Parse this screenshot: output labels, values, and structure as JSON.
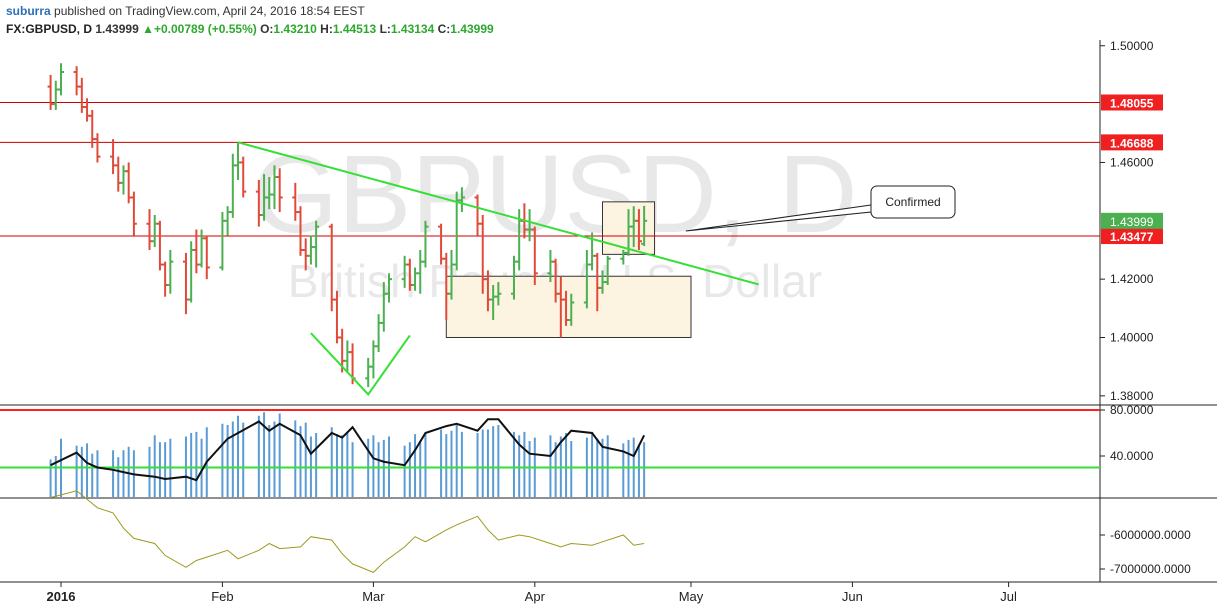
{
  "header": {
    "user": "suburra",
    "published_text": "published on TradingView.com, April 24, 2016 18:54 EEST",
    "symbol": "FX:GBPUSD, D",
    "last": "1.43999",
    "change_arrow": "▲",
    "change": "+0.00789 (+0.55%)",
    "o_label": "O:",
    "o_value": "1.43210",
    "h_label": "H:",
    "h_value": "1.44513",
    "l_label": "L:",
    "l_value": "1.43134",
    "c_label": "C:",
    "c_value": "1.43999"
  },
  "colors": {
    "up": "#4caf50",
    "down": "#e04a3a",
    "trendline": "#33e033",
    "resistance": "#cc0000",
    "price_tag": "#f02020",
    "last_tag": "#4caf50",
    "box_fill": "#fdf3e1",
    "osc_line": "#111111",
    "histogram": "#5b9bd5",
    "rsi_upper": "#ff2020",
    "rsi_lower": "#33e033",
    "volume_line": "#9e9a1e"
  },
  "chart_data": [
    {
      "type": "ohlc",
      "watermark_symbol": "GBPUSD, D",
      "watermark_name": "British Pound / U.S. Dollar",
      "y_ticks": [
        "1.50000",
        "1.46000",
        "1.42000",
        "1.40000",
        "1.38000"
      ],
      "y_tick_values": [
        1.5,
        1.46,
        1.42,
        1.4,
        1.38
      ],
      "x_ticks": [
        "2016",
        "Feb",
        "Mar",
        "Apr",
        "May",
        "Jun",
        "Jul"
      ],
      "x_tick_dates": [
        "2016-01-01",
        "2016-02-01",
        "2016-03-01",
        "2016-04-01",
        "2016-05-01",
        "2016-06-01",
        "2016-07-01"
      ],
      "price_levels": [
        {
          "label": "1.48055",
          "value": 1.48055,
          "kind": "resistance"
        },
        {
          "label": "1.46688",
          "value": 1.46688,
          "kind": "resistance"
        },
        {
          "label": "1.43477",
          "value": 1.43477,
          "kind": "resistance"
        }
      ],
      "last_price": {
        "label": "1.43999",
        "value": 1.43999
      },
      "trendline": [
        [
          "2016-02-04",
          1.4669
        ],
        [
          "2016-05-14",
          1.4182
        ]
      ],
      "v_pattern": [
        [
          "2016-02-18",
          1.4015
        ],
        [
          "2016-02-29",
          1.3805
        ],
        [
          "2016-03-08",
          1.4007
        ]
      ],
      "boxes": [
        {
          "from": "2016-03-15",
          "to": "2016-05-01",
          "top": 1.421,
          "bottom": 1.4
        },
        {
          "from": "2016-04-14",
          "to": "2016-04-24",
          "top": 1.4465,
          "bottom": 1.4285
        }
      ],
      "callout": {
        "text": "Confirmed",
        "points_to": [
          "2016-04-30",
          1.4365
        ]
      },
      "bars": [
        {
          "d": "2015-12-30",
          "o": 1.486,
          "h": 1.49,
          "l": 1.478,
          "c": 1.48
        },
        {
          "d": "2015-12-31",
          "o": 1.48,
          "h": 1.488,
          "l": 1.478,
          "c": 1.485
        },
        {
          "d": "2016-01-01",
          "o": 1.485,
          "h": 1.494,
          "l": 1.483,
          "c": 1.491
        },
        {
          "d": "2016-01-04",
          "o": 1.491,
          "h": 1.493,
          "l": 1.483,
          "c": 1.486
        },
        {
          "d": "2016-01-05",
          "o": 1.486,
          "h": 1.489,
          "l": 1.477,
          "c": 1.479
        },
        {
          "d": "2016-01-06",
          "o": 1.479,
          "h": 1.482,
          "l": 1.474,
          "c": 1.476
        },
        {
          "d": "2016-01-07",
          "o": 1.476,
          "h": 1.478,
          "l": 1.465,
          "c": 1.468
        },
        {
          "d": "2016-01-08",
          "o": 1.468,
          "h": 1.47,
          "l": 1.46,
          "c": 1.462
        },
        {
          "d": "2016-01-11",
          "o": 1.462,
          "h": 1.468,
          "l": 1.456,
          "c": 1.459
        },
        {
          "d": "2016-01-12",
          "o": 1.459,
          "h": 1.462,
          "l": 1.45,
          "c": 1.453
        },
        {
          "d": "2016-01-13",
          "o": 1.453,
          "h": 1.459,
          "l": 1.449,
          "c": 1.457
        },
        {
          "d": "2016-01-14",
          "o": 1.457,
          "h": 1.46,
          "l": 1.446,
          "c": 1.448
        },
        {
          "d": "2016-01-15",
          "o": 1.448,
          "h": 1.45,
          "l": 1.435,
          "c": 1.439
        },
        {
          "d": "2016-01-18",
          "o": 1.439,
          "h": 1.444,
          "l": 1.43,
          "c": 1.433
        },
        {
          "d": "2016-01-19",
          "o": 1.433,
          "h": 1.442,
          "l": 1.431,
          "c": 1.439
        },
        {
          "d": "2016-01-20",
          "o": 1.439,
          "h": 1.44,
          "l": 1.423,
          "c": 1.425
        },
        {
          "d": "2016-01-21",
          "o": 1.425,
          "h": 1.426,
          "l": 1.414,
          "c": 1.418
        },
        {
          "d": "2016-01-22",
          "o": 1.418,
          "h": 1.43,
          "l": 1.415,
          "c": 1.426
        },
        {
          "d": "2016-01-25",
          "o": 1.426,
          "h": 1.429,
          "l": 1.408,
          "c": 1.413
        },
        {
          "d": "2016-01-26",
          "o": 1.413,
          "h": 1.433,
          "l": 1.412,
          "c": 1.43
        },
        {
          "d": "2016-01-27",
          "o": 1.43,
          "h": 1.437,
          "l": 1.422,
          "c": 1.425
        },
        {
          "d": "2016-01-28",
          "o": 1.425,
          "h": 1.437,
          "l": 1.424,
          "c": 1.434
        },
        {
          "d": "2016-01-29",
          "o": 1.434,
          "h": 1.435,
          "l": 1.42,
          "c": 1.424
        },
        {
          "d": "2016-02-01",
          "o": 1.424,
          "h": 1.443,
          "l": 1.423,
          "c": 1.44
        },
        {
          "d": "2016-02-02",
          "o": 1.44,
          "h": 1.445,
          "l": 1.435,
          "c": 1.443
        },
        {
          "d": "2016-02-03",
          "o": 1.443,
          "h": 1.463,
          "l": 1.441,
          "c": 1.459
        },
        {
          "d": "2016-02-04",
          "o": 1.459,
          "h": 1.4669,
          "l": 1.454,
          "c": 1.46
        },
        {
          "d": "2016-02-05",
          "o": 1.46,
          "h": 1.462,
          "l": 1.448,
          "c": 1.45
        },
        {
          "d": "2016-02-08",
          "o": 1.45,
          "h": 1.454,
          "l": 1.438,
          "c": 1.442
        },
        {
          "d": "2016-02-09",
          "o": 1.442,
          "h": 1.456,
          "l": 1.44,
          "c": 1.448
        },
        {
          "d": "2016-02-10",
          "o": 1.448,
          "h": 1.455,
          "l": 1.444,
          "c": 1.449
        },
        {
          "d": "2016-02-11",
          "o": 1.449,
          "h": 1.459,
          "l": 1.444,
          "c": 1.455
        },
        {
          "d": "2016-02-12",
          "o": 1.455,
          "h": 1.458,
          "l": 1.443,
          "c": 1.448
        },
        {
          "d": "2016-02-15",
          "o": 1.448,
          "h": 1.453,
          "l": 1.44,
          "c": 1.443
        },
        {
          "d": "2016-02-16",
          "o": 1.443,
          "h": 1.445,
          "l": 1.428,
          "c": 1.43
        },
        {
          "d": "2016-02-17",
          "o": 1.43,
          "h": 1.434,
          "l": 1.423,
          "c": 1.428
        },
        {
          "d": "2016-02-18",
          "o": 1.428,
          "h": 1.435,
          "l": 1.425,
          "c": 1.431
        },
        {
          "d": "2016-02-19",
          "o": 1.431,
          "h": 1.44,
          "l": 1.424,
          "c": 1.438
        },
        {
          "d": "2016-02-22",
          "o": 1.438,
          "h": 1.439,
          "l": 1.409,
          "c": 1.413
        },
        {
          "d": "2016-02-23",
          "o": 1.413,
          "h": 1.416,
          "l": 1.398,
          "c": 1.4
        },
        {
          "d": "2016-02-24",
          "o": 1.4,
          "h": 1.403,
          "l": 1.388,
          "c": 1.392
        },
        {
          "d": "2016-02-25",
          "o": 1.392,
          "h": 1.399,
          "l": 1.388,
          "c": 1.395
        },
        {
          "d": "2016-02-26",
          "o": 1.395,
          "h": 1.398,
          "l": 1.384,
          "c": 1.386
        },
        {
          "d": "2016-02-29",
          "o": 1.386,
          "h": 1.393,
          "l": 1.383,
          "c": 1.39
        },
        {
          "d": "2016-03-01",
          "o": 1.39,
          "h": 1.399,
          "l": 1.386,
          "c": 1.397
        },
        {
          "d": "2016-03-02",
          "o": 1.397,
          "h": 1.408,
          "l": 1.395,
          "c": 1.405
        },
        {
          "d": "2016-03-03",
          "o": 1.405,
          "h": 1.419,
          "l": 1.402,
          "c": 1.415
        },
        {
          "d": "2016-03-04",
          "o": 1.415,
          "h": 1.422,
          "l": 1.412,
          "c": 1.42
        },
        {
          "d": "2016-03-07",
          "o": 1.42,
          "h": 1.428,
          "l": 1.417,
          "c": 1.425
        },
        {
          "d": "2016-03-08",
          "o": 1.425,
          "h": 1.427,
          "l": 1.416,
          "c": 1.418
        },
        {
          "d": "2016-03-09",
          "o": 1.418,
          "h": 1.424,
          "l": 1.416,
          "c": 1.422
        },
        {
          "d": "2016-03-10",
          "o": 1.422,
          "h": 1.43,
          "l": 1.415,
          "c": 1.426
        },
        {
          "d": "2016-03-11",
          "o": 1.426,
          "h": 1.44,
          "l": 1.424,
          "c": 1.438
        },
        {
          "d": "2016-03-14",
          "o": 1.438,
          "h": 1.439,
          "l": 1.425,
          "c": 1.427
        },
        {
          "d": "2016-03-15",
          "o": 1.427,
          "h": 1.429,
          "l": 1.406,
          "c": 1.415
        },
        {
          "d": "2016-03-16",
          "o": 1.415,
          "h": 1.43,
          "l": 1.413,
          "c": 1.425
        },
        {
          "d": "2016-03-17",
          "o": 1.425,
          "h": 1.45,
          "l": 1.423,
          "c": 1.447
        },
        {
          "d": "2016-03-18",
          "o": 1.447,
          "h": 1.4515,
          "l": 1.443,
          "c": 1.448
        },
        {
          "d": "2016-03-21",
          "o": 1.448,
          "h": 1.449,
          "l": 1.435,
          "c": 1.439
        },
        {
          "d": "2016-03-22",
          "o": 1.439,
          "h": 1.442,
          "l": 1.415,
          "c": 1.42
        },
        {
          "d": "2016-03-23",
          "o": 1.42,
          "h": 1.423,
          "l": 1.409,
          "c": 1.413
        },
        {
          "d": "2016-03-24",
          "o": 1.413,
          "h": 1.418,
          "l": 1.406,
          "c": 1.414
        },
        {
          "d": "2016-03-25",
          "o": 1.414,
          "h": 1.419,
          "l": 1.411,
          "c": 1.415
        },
        {
          "d": "2016-03-28",
          "o": 1.415,
          "h": 1.428,
          "l": 1.413,
          "c": 1.426
        },
        {
          "d": "2016-03-29",
          "o": 1.426,
          "h": 1.444,
          "l": 1.423,
          "c": 1.44
        },
        {
          "d": "2016-03-30",
          "o": 1.44,
          "h": 1.446,
          "l": 1.434,
          "c": 1.437
        },
        {
          "d": "2016-03-31",
          "o": 1.437,
          "h": 1.444,
          "l": 1.433,
          "c": 1.437
        },
        {
          "d": "2016-04-01",
          "o": 1.437,
          "h": 1.438,
          "l": 1.418,
          "c": 1.422
        },
        {
          "d": "2016-04-04",
          "o": 1.422,
          "h": 1.43,
          "l": 1.419,
          "c": 1.426
        },
        {
          "d": "2016-04-05",
          "o": 1.426,
          "h": 1.427,
          "l": 1.412,
          "c": 1.415
        },
        {
          "d": "2016-04-06",
          "o": 1.415,
          "h": 1.421,
          "l": 1.4,
          "c": 1.413
        },
        {
          "d": "2016-04-07",
          "o": 1.413,
          "h": 1.416,
          "l": 1.404,
          "c": 1.406
        },
        {
          "d": "2016-04-08",
          "o": 1.406,
          "h": 1.415,
          "l": 1.404,
          "c": 1.412
        },
        {
          "d": "2016-04-11",
          "o": 1.412,
          "h": 1.43,
          "l": 1.41,
          "c": 1.425
        },
        {
          "d": "2016-04-12",
          "o": 1.425,
          "h": 1.436,
          "l": 1.423,
          "c": 1.428
        },
        {
          "d": "2016-04-13",
          "o": 1.428,
          "h": 1.429,
          "l": 1.409,
          "c": 1.417
        },
        {
          "d": "2016-04-14",
          "o": 1.417,
          "h": 1.423,
          "l": 1.415,
          "c": 1.419
        },
        {
          "d": "2016-04-15",
          "o": 1.419,
          "h": 1.428,
          "l": 1.418,
          "c": 1.427
        },
        {
          "d": "2016-04-18",
          "o": 1.427,
          "h": 1.43,
          "l": 1.425,
          "c": 1.429
        },
        {
          "d": "2016-04-19",
          "o": 1.429,
          "h": 1.444,
          "l": 1.428,
          "c": 1.438
        },
        {
          "d": "2016-04-20",
          "o": 1.438,
          "h": 1.445,
          "l": 1.431,
          "c": 1.44
        },
        {
          "d": "2016-04-21",
          "o": 1.44,
          "h": 1.444,
          "l": 1.43,
          "c": 1.433
        },
        {
          "d": "2016-04-22",
          "o": 1.4321,
          "h": 1.44513,
          "l": 1.43134,
          "c": 1.43999
        }
      ]
    },
    {
      "type": "line",
      "indicator": "oscillator",
      "y_ticks": [
        "80.0000",
        "40.0000"
      ],
      "y_tick_values": [
        80,
        40
      ],
      "levels": [
        {
          "value": 80,
          "kind": "upper"
        },
        {
          "value": 30,
          "kind": "lower"
        }
      ],
      "x": [
        "2015-12-30",
        "2016-01-04",
        "2016-01-06",
        "2016-01-08",
        "2016-01-11",
        "2016-01-13",
        "2016-01-15",
        "2016-01-19",
        "2016-01-21",
        "2016-01-25",
        "2016-01-27",
        "2016-01-29",
        "2016-02-02",
        "2016-02-04",
        "2016-02-08",
        "2016-02-10",
        "2016-02-12",
        "2016-02-16",
        "2016-02-18",
        "2016-02-22",
        "2016-02-24",
        "2016-02-26",
        "2016-03-01",
        "2016-03-03",
        "2016-03-07",
        "2016-03-09",
        "2016-03-11",
        "2016-03-15",
        "2016-03-17",
        "2016-03-21",
        "2016-03-23",
        "2016-03-25",
        "2016-03-29",
        "2016-03-31",
        "2016-04-04",
        "2016-04-06",
        "2016-04-08",
        "2016-04-12",
        "2016-04-14",
        "2016-04-18",
        "2016-04-20",
        "2016-04-22"
      ],
      "values": [
        32,
        43,
        34,
        30,
        28,
        26,
        24,
        22,
        20,
        22,
        19,
        35,
        55,
        60,
        70,
        62,
        68,
        58,
        42,
        60,
        56,
        65,
        38,
        35,
        32,
        45,
        60,
        66,
        68,
        62,
        72,
        72,
        50,
        42,
        40,
        52,
        62,
        60,
        48,
        44,
        40,
        58
      ],
      "histogram": [
        40,
        52,
        48,
        45,
        42,
        45,
        48,
        55,
        52,
        60,
        58,
        65,
        70,
        72,
        75,
        70,
        74,
        66,
        60,
        62,
        58,
        55,
        55,
        54,
        52,
        56,
        60,
        62,
        64,
        60,
        66,
        64,
        58,
        56,
        55,
        57,
        56,
        58,
        55,
        54,
        53,
        52
      ]
    },
    {
      "type": "line",
      "indicator": "cumulative-volume",
      "y_ticks": [
        "-6000000.0000",
        "-7000000.0000"
      ],
      "y_tick_values": [
        -6000000,
        -7000000
      ],
      "x": [
        "2015-12-30",
        "2016-01-04",
        "2016-01-06",
        "2016-01-08",
        "2016-01-11",
        "2016-01-13",
        "2016-01-15",
        "2016-01-19",
        "2016-01-21",
        "2016-01-25",
        "2016-01-27",
        "2016-01-29",
        "2016-02-02",
        "2016-02-04",
        "2016-02-08",
        "2016-02-10",
        "2016-02-12",
        "2016-02-16",
        "2016-02-18",
        "2016-02-22",
        "2016-02-24",
        "2016-02-26",
        "2016-03-01",
        "2016-03-03",
        "2016-03-07",
        "2016-03-09",
        "2016-03-11",
        "2016-03-15",
        "2016-03-17",
        "2016-03-21",
        "2016-03-23",
        "2016-03-25",
        "2016-03-29",
        "2016-03-31",
        "2016-04-04",
        "2016-04-06",
        "2016-04-08",
        "2016-04-12",
        "2016-04-14",
        "2016-04-18",
        "2016-04-20",
        "2016-04-22"
      ],
      "values": [
        -4900000,
        -4700000,
        -4950000,
        -5200000,
        -5350000,
        -5800000,
        -6100000,
        -6250000,
        -6600000,
        -6950000,
        -6750000,
        -6650000,
        -6450000,
        -6700000,
        -6450000,
        -6250000,
        -6400000,
        -6350000,
        -6050000,
        -6150000,
        -6550000,
        -6850000,
        -7100000,
        -6800000,
        -6350000,
        -6050000,
        -6200000,
        -5850000,
        -5700000,
        -5450000,
        -5850000,
        -6150000,
        -6000000,
        -6050000,
        -6250000,
        -6350000,
        -6250000,
        -6300000,
        -6200000,
        -6000000,
        -6300000,
        -6250000
      ]
    }
  ]
}
